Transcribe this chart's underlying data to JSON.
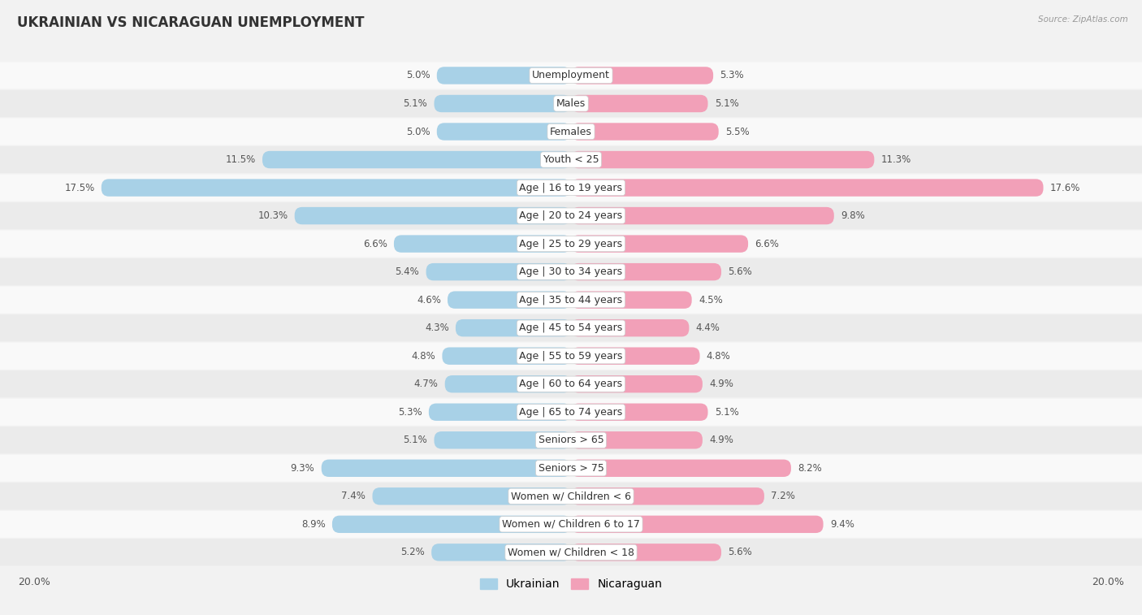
{
  "title": "UKRAINIAN VS NICARAGUAN UNEMPLOYMENT",
  "source": "Source: ZipAtlas.com",
  "categories": [
    "Unemployment",
    "Males",
    "Females",
    "Youth < 25",
    "Age | 16 to 19 years",
    "Age | 20 to 24 years",
    "Age | 25 to 29 years",
    "Age | 30 to 34 years",
    "Age | 35 to 44 years",
    "Age | 45 to 54 years",
    "Age | 55 to 59 years",
    "Age | 60 to 64 years",
    "Age | 65 to 74 years",
    "Seniors > 65",
    "Seniors > 75",
    "Women w/ Children < 6",
    "Women w/ Children 6 to 17",
    "Women w/ Children < 18"
  ],
  "ukrainian": [
    5.0,
    5.1,
    5.0,
    11.5,
    17.5,
    10.3,
    6.6,
    5.4,
    4.6,
    4.3,
    4.8,
    4.7,
    5.3,
    5.1,
    9.3,
    7.4,
    8.9,
    5.2
  ],
  "nicaraguan": [
    5.3,
    5.1,
    5.5,
    11.3,
    17.6,
    9.8,
    6.6,
    5.6,
    4.5,
    4.4,
    4.8,
    4.9,
    5.1,
    4.9,
    8.2,
    7.2,
    9.4,
    5.6
  ],
  "ukrainian_color": "#a8d1e7",
  "nicaraguan_color": "#f2a0b8",
  "bar_height": 0.62,
  "xlim": 20.0,
  "bg_color": "#f2f2f2",
  "row_light": "#f9f9f9",
  "row_dark": "#ebebeb",
  "label_fontsize": 9.0,
  "title_fontsize": 12,
  "value_fontsize": 8.5,
  "source_fontsize": 7.5
}
